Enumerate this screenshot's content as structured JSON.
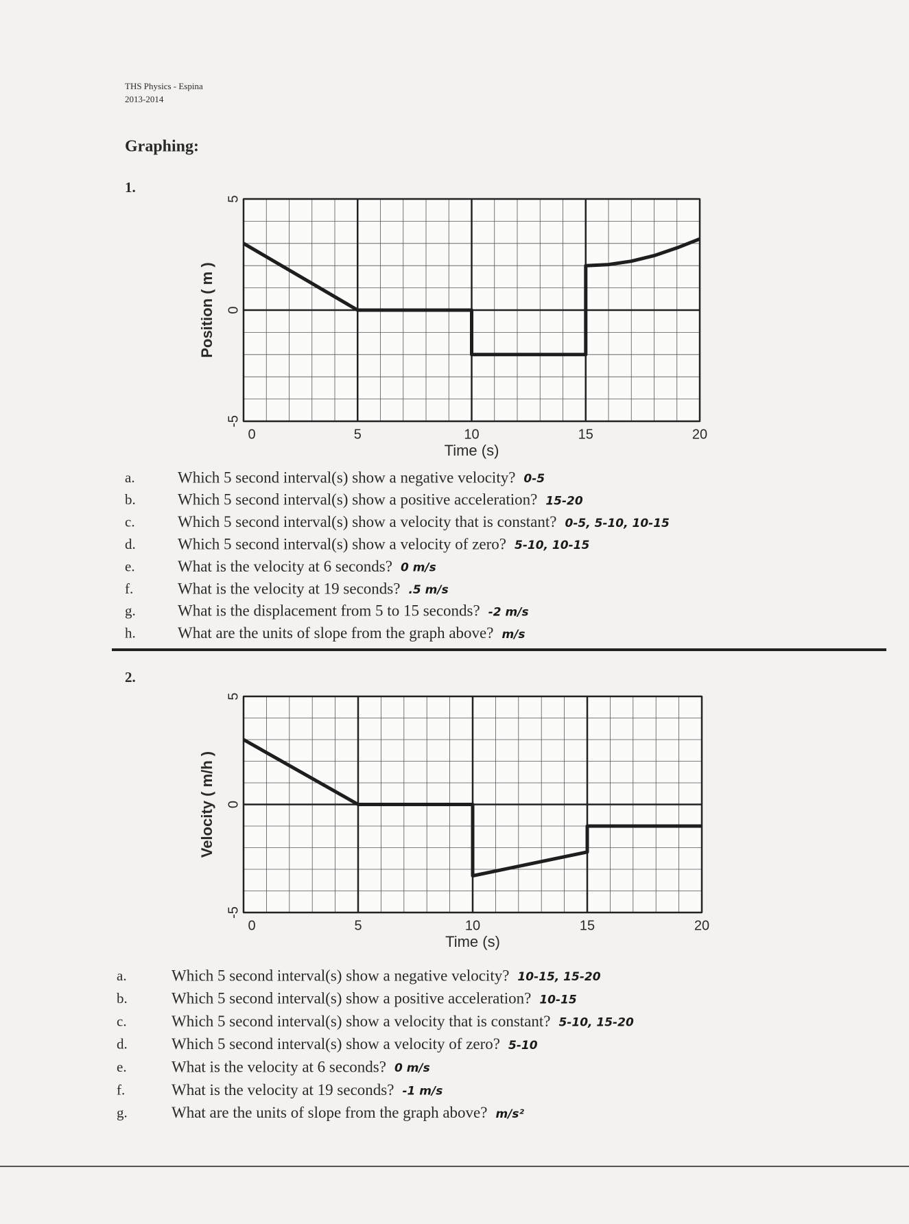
{
  "header": {
    "course": "THS Physics - Espina",
    "year": "2013-2014"
  },
  "heading": "Graphing:",
  "sections": [
    {
      "number": "1.",
      "questions": [
        {
          "letter": "a.",
          "text": "Which 5 second interval(s) show a negative velocity?",
          "answer": "0-5"
        },
        {
          "letter": "b.",
          "text": "Which 5 second interval(s) show a positive acceleration?",
          "answer": "15-20"
        },
        {
          "letter": "c.",
          "text": "Which 5 second interval(s) show a velocity that is constant?",
          "answer": "0-5, 5-10, 10-15"
        },
        {
          "letter": "d.",
          "text": "Which 5 second interval(s) show a velocity of zero?",
          "answer": "5-10, 10-15"
        },
        {
          "letter": "e.",
          "text": "What is the velocity at 6 seconds?",
          "answer": "0 m/s"
        },
        {
          "letter": "f.",
          "text": "What is the velocity at 19 seconds?",
          "answer": ".5 m/s"
        },
        {
          "letter": "g.",
          "text": "What is the displacement from 5 to 15 seconds?",
          "answer": "-2 m/s"
        },
        {
          "letter": "h.",
          "text": "What are the units of slope from the graph above?",
          "answer": "m/s"
        }
      ]
    },
    {
      "number": "2.",
      "questions": [
        {
          "letter": "a.",
          "text": "Which 5 second interval(s) show a negative velocity?",
          "answer": "10-15, 15-20"
        },
        {
          "letter": "b.",
          "text": "Which 5 second interval(s) show a positive acceleration?",
          "answer": "10-15"
        },
        {
          "letter": "c.",
          "text": "Which 5 second interval(s) show a velocity that is constant?",
          "answer": "5-10, 15-20"
        },
        {
          "letter": "d.",
          "text": "Which 5 second interval(s) show a velocity of zero?",
          "answer": "5-10"
        },
        {
          "letter": "e.",
          "text": "What is the velocity at 6 seconds?",
          "answer": "0 m/s"
        },
        {
          "letter": "f.",
          "text": "What is the velocity at 19 seconds?",
          "answer": "-1 m/s"
        },
        {
          "letter": "g.",
          "text": "What are the units of slope from the graph above?",
          "answer": "m/s²"
        }
      ]
    }
  ],
  "chart_data": [
    {
      "type": "line",
      "xlabel": "Time (s)",
      "ylabel": "Position ( m )",
      "xlim": [
        0,
        20
      ],
      "ylim": [
        -5,
        5
      ],
      "xticks": [
        0,
        5,
        10,
        15,
        20
      ],
      "yticks": [
        -5,
        0,
        5
      ],
      "grid": true,
      "series": [
        {
          "color": "#1e1e1e",
          "x": [
            0,
            5,
            10,
            10,
            15,
            15,
            16,
            17,
            18,
            19,
            20
          ],
          "values": [
            3,
            0,
            0,
            -2,
            -2,
            2,
            2.05,
            2.2,
            2.45,
            2.8,
            3.2
          ]
        }
      ]
    },
    {
      "type": "line",
      "xlabel": "Time (s)",
      "ylabel": "Velocity ( m/h )",
      "xlim": [
        0,
        20
      ],
      "ylim": [
        -5,
        5
      ],
      "xticks": [
        0,
        5,
        10,
        15,
        20
      ],
      "yticks": [
        -5,
        0,
        5
      ],
      "grid": true,
      "series": [
        {
          "color": "#1e1e1e",
          "x": [
            0,
            5,
            10,
            10,
            15,
            15,
            20
          ],
          "values": [
            3,
            0,
            0,
            -3.3,
            -2.2,
            -1,
            -1
          ]
        }
      ]
    }
  ]
}
